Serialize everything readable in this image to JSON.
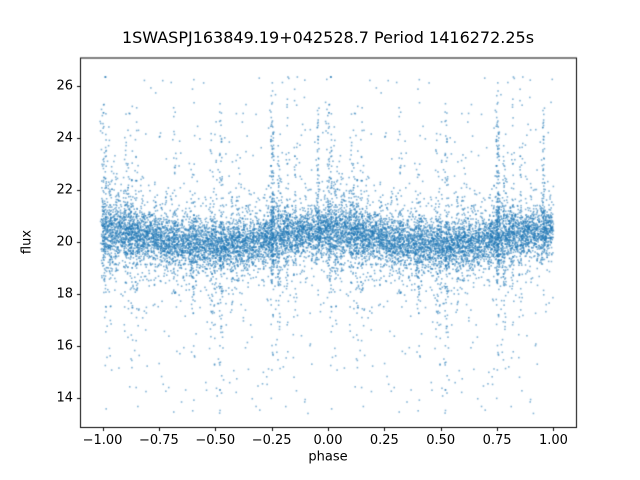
{
  "figure": {
    "background": "#ffffff",
    "frame_color": "#000000",
    "text_color": "#000000"
  },
  "chart_data": {
    "type": "scatter",
    "title": "1SWASPJ163849.19+042528.7 Period 1416272.25s",
    "xlabel": "phase",
    "ylabel": "flux",
    "xlim": [
      -1.1,
      1.1
    ],
    "ylim": [
      12.9,
      27.1
    ],
    "xticks": [
      -1.0,
      -0.75,
      -0.5,
      -0.25,
      0.0,
      0.25,
      0.5,
      0.75,
      1.0
    ],
    "xtick_labels": [
      "−1.00",
      "−0.75",
      "−0.50",
      "−0.25",
      "0.00",
      "0.25",
      "0.50",
      "0.75",
      "1.00"
    ],
    "yticks": [
      14,
      16,
      18,
      20,
      22,
      24,
      26
    ],
    "ytick_labels": [
      "14",
      "16",
      "18",
      "20",
      "22",
      "24",
      "26"
    ],
    "grid": false,
    "legend": null,
    "marker_color": "#1f77b4",
    "marker_alpha": 0.55,
    "marker_size_px": 1.6,
    "series_description": "Phase-folded SuperWASP light curve: dense flux band near 20 (slightly higher near phase 0 and ±1), with many narrow vertical outlier streaks spanning roughly flux 13.5 to 26.3; strongest spike clusters near phase −0.25 and 0.75; data duplicated over phase −1 to 1.",
    "generation": {
      "seed": 7,
      "n_band": 5200,
      "band_center": 20.15,
      "band_cos_amp": 0.3,
      "band_sigma": 0.44,
      "wide_fraction": 0.18,
      "wide_sigma": 0.95,
      "n_streaks": 30,
      "streak_points": 40,
      "streak_x_sigma": 0.004,
      "tail_min": 0.6,
      "tail_max": 6.4,
      "n_uniform_outliers": 260,
      "y_min": 13.4,
      "y_max": 26.35,
      "feature_spikes": [
        {
          "phase": 0.752,
          "n": 140,
          "y_low": 18.4,
          "y_high": 26.3
        },
        {
          "phase": 0.0,
          "n": 70,
          "y_low": 19.0,
          "y_high": 25.4
        },
        {
          "phase": 0.955,
          "n": 60,
          "y_low": 18.8,
          "y_high": 25.3
        },
        {
          "phase": 0.32,
          "n": 50,
          "y_low": 17.5,
          "y_high": 24.5
        }
      ]
    }
  }
}
